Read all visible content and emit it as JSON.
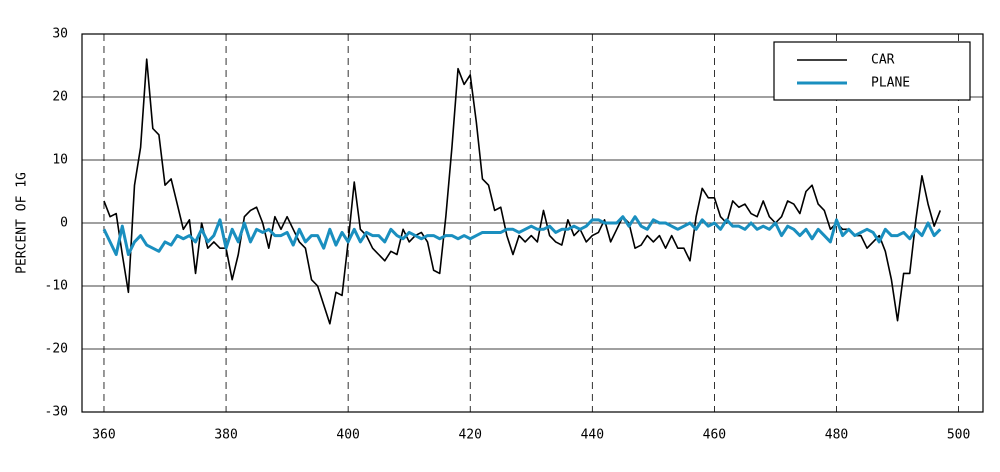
{
  "chart_data": {
    "type": "line",
    "ylabel": "PERCENT OF 1G",
    "x": [
      360,
      361,
      362,
      363,
      364,
      365,
      366,
      367,
      368,
      369,
      370,
      371,
      372,
      373,
      374,
      375,
      376,
      377,
      378,
      379,
      380,
      381,
      382,
      383,
      384,
      385,
      386,
      387,
      388,
      389,
      390,
      391,
      392,
      393,
      394,
      395,
      396,
      397,
      398,
      399,
      400,
      401,
      402,
      403,
      404,
      405,
      406,
      407,
      408,
      409,
      410,
      411,
      412,
      413,
      414,
      415,
      416,
      417,
      418,
      419,
      420,
      421,
      422,
      423,
      424,
      425,
      426,
      427,
      428,
      429,
      430,
      431,
      432,
      433,
      434,
      435,
      436,
      437,
      438,
      439,
      440,
      441,
      442,
      443,
      444,
      445,
      446,
      447,
      448,
      449,
      450,
      451,
      452,
      453,
      454,
      455,
      456,
      457,
      458,
      459,
      460,
      461,
      462,
      463,
      464,
      465,
      466,
      467,
      468,
      469,
      470,
      471,
      472,
      473,
      474,
      475,
      476,
      477,
      478,
      479,
      480,
      481,
      482,
      483,
      484,
      485,
      486,
      487,
      488,
      489,
      490,
      491,
      492,
      493,
      494,
      495,
      496,
      497
    ],
    "series": [
      {
        "name": "CAR",
        "color": "#000000",
        "width": 1.6,
        "values": [
          3.5,
          1,
          1.5,
          -5,
          -11,
          6,
          12,
          26,
          15,
          14,
          6,
          7,
          3,
          -1,
          0.5,
          -8,
          0,
          -4,
          -3,
          -4,
          -4,
          -9,
          -5,
          1,
          2,
          2.5,
          0,
          -4,
          1,
          -1,
          1,
          -1,
          -3,
          -4,
          -9,
          -10,
          -13,
          -16,
          -11,
          -11.5,
          -3,
          6.5,
          -1,
          -2,
          -4,
          -5,
          -6,
          -4.5,
          -5,
          -1,
          -3,
          -2,
          -1.5,
          -3,
          -7.5,
          -8,
          1,
          12,
          24.5,
          22,
          23.5,
          16,
          7,
          6,
          2,
          2.5,
          -2,
          -5,
          -2,
          -3,
          -2,
          -3,
          2,
          -2,
          -3,
          -3.5,
          0.5,
          -2,
          -1,
          -3,
          -2,
          -1.5,
          0.5,
          -3,
          -1,
          1,
          0,
          -4,
          -3.5,
          -2,
          -3,
          -2,
          -4,
          -2,
          -4,
          -4,
          -6,
          1,
          5.5,
          4,
          4,
          1,
          0,
          3.5,
          2.5,
          3,
          1.5,
          1,
          3.5,
          1,
          0,
          1,
          3.5,
          3,
          1.5,
          5,
          6,
          3,
          2,
          -1,
          0,
          -1,
          -1,
          -2,
          -2,
          -4,
          -3,
          -2,
          -4.5,
          -9,
          -15.5,
          -8,
          -8,
          0.5,
          7.5,
          3,
          -0.5,
          2
        ]
      },
      {
        "name": "PLANE",
        "color": "#1a8fbf",
        "width": 3,
        "values": [
          -1,
          -3,
          -5,
          -0.5,
          -5,
          -3,
          -2,
          -3.5,
          -4,
          -4.5,
          -3,
          -3.5,
          -2,
          -2.5,
          -2,
          -3,
          -1,
          -3,
          -2,
          0.5,
          -4,
          -1,
          -3,
          0,
          -3,
          -1,
          -1.5,
          -1,
          -2,
          -2,
          -1.5,
          -3.5,
          -1,
          -3,
          -2,
          -2,
          -4,
          -1,
          -3.5,
          -1.5,
          -3,
          -1,
          -3,
          -1.5,
          -2,
          -2,
          -3,
          -1,
          -2,
          -2.5,
          -1.5,
          -2,
          -2.5,
          -2,
          -2,
          -2.5,
          -2,
          -2,
          -2.5,
          -2,
          -2.5,
          -2,
          -1.5,
          -1.5,
          -1.5,
          -1.5,
          -1,
          -1,
          -1.5,
          -1,
          -0.5,
          -1,
          -1,
          -0.5,
          -1.5,
          -1,
          -1,
          -0.5,
          -1,
          -0.5,
          0.5,
          0.5,
          0,
          0,
          0,
          1,
          -0.5,
          1,
          -0.5,
          -1,
          0.5,
          0,
          0,
          -0.5,
          -1,
          -0.5,
          0,
          -1,
          0.5,
          -0.5,
          0,
          -1,
          0.5,
          -0.5,
          -0.5,
          -1,
          0,
          -1,
          -0.5,
          -1,
          0,
          -2,
          -0.5,
          -1,
          -2,
          -1,
          -2.5,
          -1,
          -2,
          -3,
          0.5,
          -2,
          -1,
          -2,
          -1.5,
          -1,
          -1.5,
          -3,
          -1,
          -2,
          -2,
          -1.5,
          -2.5,
          -1,
          -2,
          0,
          -2,
          -1
        ]
      }
    ],
    "xlim": [
      356.4,
      504
    ],
    "ylim": [
      -30,
      30
    ],
    "xticks": [
      360,
      380,
      400,
      420,
      440,
      460,
      480,
      500
    ],
    "yticks": [
      -30,
      -20,
      -10,
      0,
      10,
      20,
      30
    ],
    "grid": true,
    "legend": "upper right"
  }
}
